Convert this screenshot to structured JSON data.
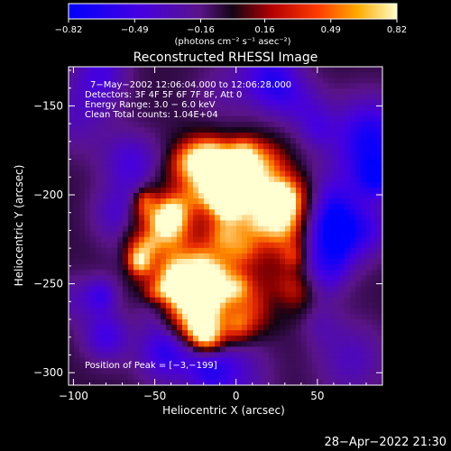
{
  "colorbar": {
    "ticks": [
      "−0.82",
      "−0.49",
      "−0.16",
      "0.16",
      "0.49",
      "0.82"
    ],
    "unit_label": "(photons cm⁻² s⁻¹ asec⁻²)"
  },
  "annotations": {
    "line1": "7−May−2002 12:06:04.000 to 12:06:28.000",
    "line2": "Detectors: 3F 4F 5F 6F 7F 8F, Att 0",
    "line3": "Energy Range: 3.0 − 6.0 keV",
    "line4": "Clean     Total counts: 1.04E+04",
    "peak": "Position of Peak = [−3,−199]"
  },
  "footer": {
    "timestamp": "28−Apr−2022 21:30"
  },
  "colors": {
    "background": "#000000",
    "negative_low": "#0000ff",
    "negative_mid": "#6a00c8",
    "neutral": "#1a0a1a",
    "positive_low": "#c80000",
    "positive_mid": "#ff6400",
    "positive_high": "#ffff80"
  },
  "chart_data": {
    "type": "heatmap",
    "title": "Reconstructed RHESSI Image",
    "xlabel": "Heliocentric X (arcsec)",
    "ylabel": "Heliocentric Y (arcsec)",
    "xlim": [
      -103,
      90
    ],
    "ylim": [
      -307,
      -128
    ],
    "x_ticks": [
      -100,
      -50,
      0,
      50
    ],
    "y_ticks": [
      -150,
      -200,
      -250,
      -300
    ],
    "x_tick_labels": [
      "−100",
      "−50",
      "0",
      "50"
    ],
    "y_tick_labels": [
      "−150",
      "−200",
      "−250",
      "−300"
    ],
    "color_range": [
      -0.82,
      0.82
    ],
    "peak_position": [
      -3,
      -199
    ],
    "peak_value": 0.82
  }
}
